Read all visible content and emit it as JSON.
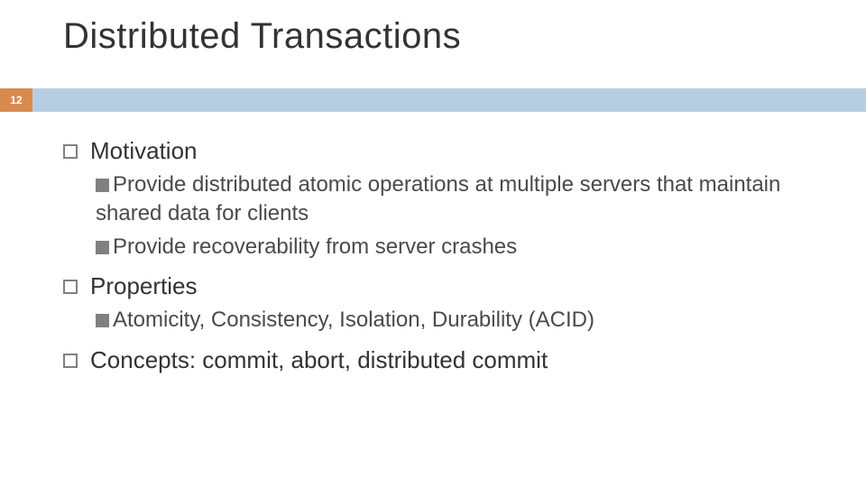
{
  "colors": {
    "orange": "#d98a4e",
    "blue": "#b7cde2",
    "title_text": "#333333",
    "body_text": "#4a4a4a",
    "bullet_border": "#808080",
    "background": "#ffffff"
  },
  "typography": {
    "title_fontsize_pt": 30,
    "level1_fontsize_pt": 20,
    "level2_fontsize_pt": 18,
    "font_family": "Arial"
  },
  "slide_number": "12",
  "title": "Distributed Transactions",
  "items": [
    {
      "label": "Motivation",
      "children": [
        {
          "label": "Provide distributed atomic operations at multiple servers that maintain shared data for clients"
        },
        {
          "label": "Provide recoverability from server crashes"
        }
      ]
    },
    {
      "label": "Properties",
      "children": [
        {
          "label": "Atomicity, Consistency, Isolation, Durability (ACID)"
        }
      ]
    },
    {
      "label": "Concepts: commit, abort, distributed commit",
      "children": []
    }
  ]
}
